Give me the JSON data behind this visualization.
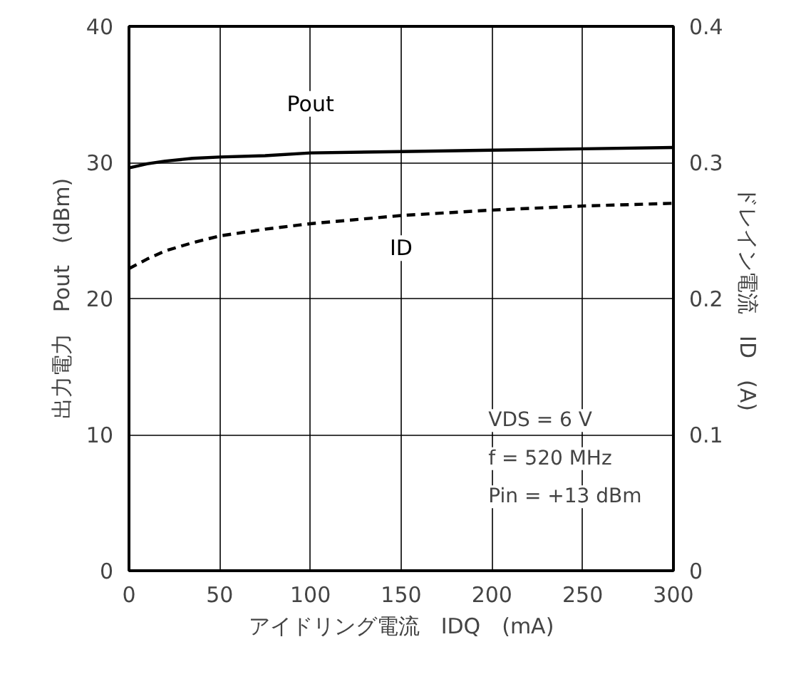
{
  "chart_data": {
    "type": "line",
    "x": [
      0,
      10,
      20,
      35,
      50,
      75,
      100,
      150,
      200,
      250,
      300
    ],
    "xlabel": "アイドリング電流　IDQ　(mA)",
    "ylabel": "出力電力　Pout　(dBm)",
    "y2label": "ドレイン電流　ID　(A)",
    "series": [
      {
        "name": "Pout",
        "color": "#000000",
        "line_style": "solid",
        "values": [
          29.6,
          29.9,
          30.1,
          30.3,
          30.4,
          30.5,
          30.7,
          30.8,
          30.9,
          31.0,
          31.1
        ]
      },
      {
        "name": "ID",
        "color": "#000000",
        "line_style": "dashed",
        "axis": "y2",
        "values": [
          0.222,
          0.229,
          0.235,
          0.241,
          0.246,
          0.251,
          0.255,
          0.261,
          0.265,
          0.268,
          0.27
        ]
      }
    ],
    "xlim": [
      0,
      300
    ],
    "xticks": [
      0,
      50,
      100,
      150,
      200,
      250,
      300
    ],
    "ylim": [
      0,
      40
    ],
    "yticks": [
      0,
      10,
      20,
      30,
      40
    ],
    "y2lim": [
      0,
      0.4
    ],
    "y2ticks": [
      {
        "value": 0,
        "label": "0"
      },
      0.1,
      0.2,
      0.3,
      0.4
    ],
    "grid": true,
    "marker": "none",
    "annotations": [
      "VDS = 6 V",
      "f = 520 MHz",
      "Pin = +13 dBm"
    ]
  }
}
